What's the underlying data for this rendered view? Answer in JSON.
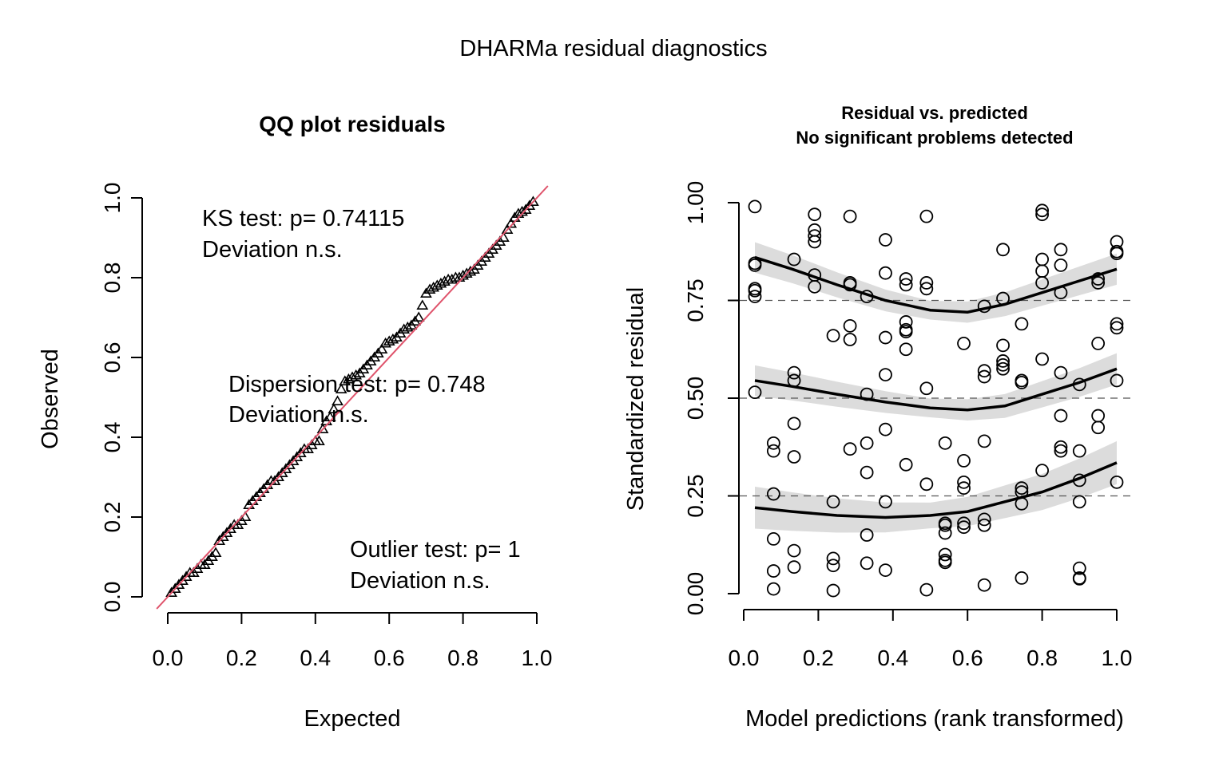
{
  "figure_title": "DHARMa residual diagnostics",
  "chart_data": [
    {
      "type": "scatter",
      "title": "QQ plot residuals",
      "xlabel": "Expected",
      "ylabel": "Observed",
      "xlim": [
        0,
        1
      ],
      "ylim": [
        0,
        1
      ],
      "xticks": [
        "0.0",
        "0.2",
        "0.4",
        "0.6",
        "0.8",
        "1.0"
      ],
      "yticks": [
        "0.0",
        "0.2",
        "0.4",
        "0.6",
        "0.8",
        "1.0"
      ],
      "marker": "triangle",
      "reference_line": {
        "from": [
          0,
          0
        ],
        "to": [
          1,
          1
        ],
        "color": "#DF536B"
      },
      "annotations": [
        {
          "line1": "KS test: p= 0.74115",
          "line2": "Deviation  n.s."
        },
        {
          "line1": "Dispersion test: p= 0.748",
          "line2": "Deviation  n.s."
        },
        {
          "line1": "Outlier test: p= 1",
          "line2": "Deviation  n.s."
        }
      ],
      "points": [
        [
          0.01,
          0.01
        ],
        [
          0.02,
          0.02
        ],
        [
          0.03,
          0.03
        ],
        [
          0.04,
          0.04
        ],
        [
          0.05,
          0.05
        ],
        [
          0.06,
          0.06
        ],
        [
          0.07,
          0.06
        ],
        [
          0.08,
          0.07
        ],
        [
          0.09,
          0.08
        ],
        [
          0.1,
          0.08
        ],
        [
          0.11,
          0.09
        ],
        [
          0.12,
          0.1
        ],
        [
          0.13,
          0.11
        ],
        [
          0.14,
          0.14
        ],
        [
          0.15,
          0.15
        ],
        [
          0.16,
          0.16
        ],
        [
          0.17,
          0.17
        ],
        [
          0.18,
          0.18
        ],
        [
          0.19,
          0.18
        ],
        [
          0.2,
          0.19
        ],
        [
          0.21,
          0.2
        ],
        [
          0.22,
          0.23
        ],
        [
          0.23,
          0.24
        ],
        [
          0.24,
          0.25
        ],
        [
          0.25,
          0.26
        ],
        [
          0.26,
          0.27
        ],
        [
          0.27,
          0.28
        ],
        [
          0.28,
          0.29
        ],
        [
          0.29,
          0.29
        ],
        [
          0.3,
          0.3
        ],
        [
          0.31,
          0.31
        ],
        [
          0.32,
          0.32
        ],
        [
          0.33,
          0.33
        ],
        [
          0.34,
          0.34
        ],
        [
          0.35,
          0.35
        ],
        [
          0.36,
          0.36
        ],
        [
          0.37,
          0.37
        ],
        [
          0.38,
          0.37
        ],
        [
          0.39,
          0.38
        ],
        [
          0.4,
          0.39
        ],
        [
          0.41,
          0.39
        ],
        [
          0.42,
          0.42
        ],
        [
          0.43,
          0.44
        ],
        [
          0.44,
          0.45
        ],
        [
          0.45,
          0.47
        ],
        [
          0.46,
          0.49
        ],
        [
          0.47,
          0.52
        ],
        [
          0.48,
          0.54
        ],
        [
          0.49,
          0.545
        ],
        [
          0.5,
          0.55
        ],
        [
          0.51,
          0.555
        ],
        [
          0.52,
          0.56
        ],
        [
          0.53,
          0.57
        ],
        [
          0.54,
          0.58
        ],
        [
          0.55,
          0.59
        ],
        [
          0.56,
          0.6
        ],
        [
          0.57,
          0.61
        ],
        [
          0.58,
          0.62
        ],
        [
          0.59,
          0.635
        ],
        [
          0.6,
          0.64
        ],
        [
          0.61,
          0.645
        ],
        [
          0.62,
          0.65
        ],
        [
          0.63,
          0.66
        ],
        [
          0.64,
          0.67
        ],
        [
          0.65,
          0.675
        ],
        [
          0.66,
          0.68
        ],
        [
          0.67,
          0.69
        ],
        [
          0.68,
          0.7
        ],
        [
          0.69,
          0.73
        ],
        [
          0.7,
          0.76
        ],
        [
          0.71,
          0.77
        ],
        [
          0.72,
          0.775
        ],
        [
          0.73,
          0.78
        ],
        [
          0.74,
          0.785
        ],
        [
          0.75,
          0.79
        ],
        [
          0.76,
          0.795
        ],
        [
          0.77,
          0.795
        ],
        [
          0.78,
          0.8
        ],
        [
          0.79,
          0.8
        ],
        [
          0.8,
          0.805
        ],
        [
          0.81,
          0.81
        ],
        [
          0.82,
          0.815
        ],
        [
          0.83,
          0.82
        ],
        [
          0.84,
          0.83
        ],
        [
          0.85,
          0.84
        ],
        [
          0.86,
          0.85
        ],
        [
          0.87,
          0.86
        ],
        [
          0.88,
          0.87
        ],
        [
          0.89,
          0.88
        ],
        [
          0.9,
          0.89
        ],
        [
          0.91,
          0.9
        ],
        [
          0.92,
          0.92
        ],
        [
          0.93,
          0.935
        ],
        [
          0.94,
          0.95
        ],
        [
          0.95,
          0.96
        ],
        [
          0.96,
          0.965
        ],
        [
          0.97,
          0.97
        ],
        [
          0.98,
          0.98
        ],
        [
          0.99,
          0.99
        ]
      ]
    },
    {
      "type": "scatter",
      "title": "Residual vs. predicted",
      "subtitle": "No significant problems detected",
      "xlabel": "Model predictions (rank transformed)",
      "ylabel": "Standardized residual",
      "xlim": [
        0,
        1
      ],
      "ylim": [
        0,
        1
      ],
      "xticks": [
        "0.0",
        "0.2",
        "0.4",
        "0.6",
        "0.8",
        "1.0"
      ],
      "yticks": [
        "0.00",
        "0.25",
        "0.50",
        "0.75",
        "1.00"
      ],
      "marker": "open-circle",
      "hlines": [
        0.25,
        0.5,
        0.75
      ],
      "series": [
        {
          "quantile": 0.75,
          "x": [
            0.03,
            0.13,
            0.25,
            0.38,
            0.5,
            0.6,
            0.7,
            0.8,
            0.9,
            1.0
          ],
          "y": [
            0.86,
            0.83,
            0.79,
            0.75,
            0.725,
            0.72,
            0.74,
            0.77,
            0.8,
            0.83
          ],
          "band": 0.04
        },
        {
          "quantile": 0.5,
          "x": [
            0.03,
            0.13,
            0.25,
            0.38,
            0.5,
            0.6,
            0.7,
            0.8,
            0.9,
            1.0
          ],
          "y": [
            0.545,
            0.53,
            0.51,
            0.49,
            0.475,
            0.47,
            0.48,
            0.51,
            0.54,
            0.575
          ],
          "band": 0.04
        },
        {
          "quantile": 0.25,
          "x": [
            0.03,
            0.13,
            0.25,
            0.38,
            0.5,
            0.6,
            0.7,
            0.8,
            0.9,
            1.0
          ],
          "y": [
            0.22,
            0.21,
            0.2,
            0.195,
            0.2,
            0.21,
            0.235,
            0.26,
            0.295,
            0.335
          ],
          "band": 0.055
        }
      ],
      "points": [
        [
          0.03,
          0.99
        ],
        [
          0.03,
          0.845
        ],
        [
          0.03,
          0.84
        ],
        [
          0.03,
          0.78
        ],
        [
          0.03,
          0.775
        ],
        [
          0.03,
          0.76
        ],
        [
          0.03,
          0.515
        ],
        [
          0.08,
          0.385
        ],
        [
          0.08,
          0.365
        ],
        [
          0.08,
          0.255
        ],
        [
          0.08,
          0.14
        ],
        [
          0.08,
          0.058
        ],
        [
          0.08,
          0.012
        ],
        [
          0.135,
          0.855
        ],
        [
          0.135,
          0.565
        ],
        [
          0.135,
          0.545
        ],
        [
          0.135,
          0.435
        ],
        [
          0.135,
          0.35
        ],
        [
          0.135,
          0.11
        ],
        [
          0.135,
          0.068
        ],
        [
          0.19,
          0.97
        ],
        [
          0.19,
          0.93
        ],
        [
          0.19,
          0.915
        ],
        [
          0.19,
          0.9
        ],
        [
          0.19,
          0.815
        ],
        [
          0.19,
          0.785
        ],
        [
          0.24,
          0.66
        ],
        [
          0.24,
          0.235
        ],
        [
          0.24,
          0.09
        ],
        [
          0.24,
          0.072
        ],
        [
          0.24,
          0.008
        ],
        [
          0.285,
          0.965
        ],
        [
          0.285,
          0.795
        ],
        [
          0.285,
          0.79
        ],
        [
          0.285,
          0.685
        ],
        [
          0.285,
          0.65
        ],
        [
          0.285,
          0.37
        ],
        [
          0.33,
          0.76
        ],
        [
          0.33,
          0.51
        ],
        [
          0.33,
          0.385
        ],
        [
          0.33,
          0.31
        ],
        [
          0.33,
          0.15
        ],
        [
          0.33,
          0.078
        ],
        [
          0.38,
          0.905
        ],
        [
          0.38,
          0.82
        ],
        [
          0.38,
          0.655
        ],
        [
          0.38,
          0.56
        ],
        [
          0.38,
          0.42
        ],
        [
          0.38,
          0.235
        ],
        [
          0.38,
          0.06
        ],
        [
          0.435,
          0.805
        ],
        [
          0.435,
          0.79
        ],
        [
          0.435,
          0.695
        ],
        [
          0.435,
          0.675
        ],
        [
          0.435,
          0.67
        ],
        [
          0.435,
          0.625
        ],
        [
          0.435,
          0.33
        ],
        [
          0.49,
          0.965
        ],
        [
          0.49,
          0.795
        ],
        [
          0.49,
          0.78
        ],
        [
          0.49,
          0.525
        ],
        [
          0.49,
          0.28
        ],
        [
          0.49,
          0.01
        ],
        [
          0.54,
          0.385
        ],
        [
          0.54,
          0.18
        ],
        [
          0.54,
          0.175
        ],
        [
          0.54,
          0.155
        ],
        [
          0.54,
          0.1
        ],
        [
          0.54,
          0.085
        ],
        [
          0.54,
          0.08
        ],
        [
          0.59,
          0.64
        ],
        [
          0.59,
          0.34
        ],
        [
          0.59,
          0.285
        ],
        [
          0.59,
          0.27
        ],
        [
          0.59,
          0.18
        ],
        [
          0.59,
          0.17
        ],
        [
          0.645,
          0.735
        ],
        [
          0.645,
          0.57
        ],
        [
          0.645,
          0.555
        ],
        [
          0.645,
          0.39
        ],
        [
          0.645,
          0.19
        ],
        [
          0.645,
          0.175
        ],
        [
          0.645,
          0.022
        ],
        [
          0.695,
          0.88
        ],
        [
          0.695,
          0.755
        ],
        [
          0.695,
          0.635
        ],
        [
          0.695,
          0.595
        ],
        [
          0.695,
          0.585
        ],
        [
          0.695,
          0.575
        ],
        [
          0.745,
          0.69
        ],
        [
          0.745,
          0.545
        ],
        [
          0.745,
          0.54
        ],
        [
          0.745,
          0.27
        ],
        [
          0.745,
          0.26
        ],
        [
          0.745,
          0.23
        ],
        [
          0.745,
          0.04
        ],
        [
          0.8,
          0.98
        ],
        [
          0.8,
          0.97
        ],
        [
          0.8,
          0.855
        ],
        [
          0.8,
          0.825
        ],
        [
          0.8,
          0.795
        ],
        [
          0.8,
          0.6
        ],
        [
          0.8,
          0.315
        ],
        [
          0.85,
          0.88
        ],
        [
          0.85,
          0.84
        ],
        [
          0.85,
          0.77
        ],
        [
          0.85,
          0.565
        ],
        [
          0.85,
          0.455
        ],
        [
          0.85,
          0.375
        ],
        [
          0.85,
          0.365
        ],
        [
          0.9,
          0.535
        ],
        [
          0.9,
          0.365
        ],
        [
          0.9,
          0.29
        ],
        [
          0.9,
          0.235
        ],
        [
          0.9,
          0.065
        ],
        [
          0.9,
          0.04
        ],
        [
          0.9,
          0.038
        ],
        [
          0.95,
          0.805
        ],
        [
          0.95,
          0.795
        ],
        [
          0.95,
          0.64
        ],
        [
          0.95,
          0.455
        ],
        [
          0.95,
          0.425
        ],
        [
          1.0,
          0.9
        ],
        [
          1.0,
          0.875
        ],
        [
          1.0,
          0.87
        ],
        [
          1.0,
          0.69
        ],
        [
          1.0,
          0.68
        ],
        [
          1.0,
          0.545
        ],
        [
          1.0,
          0.285
        ]
      ]
    }
  ]
}
